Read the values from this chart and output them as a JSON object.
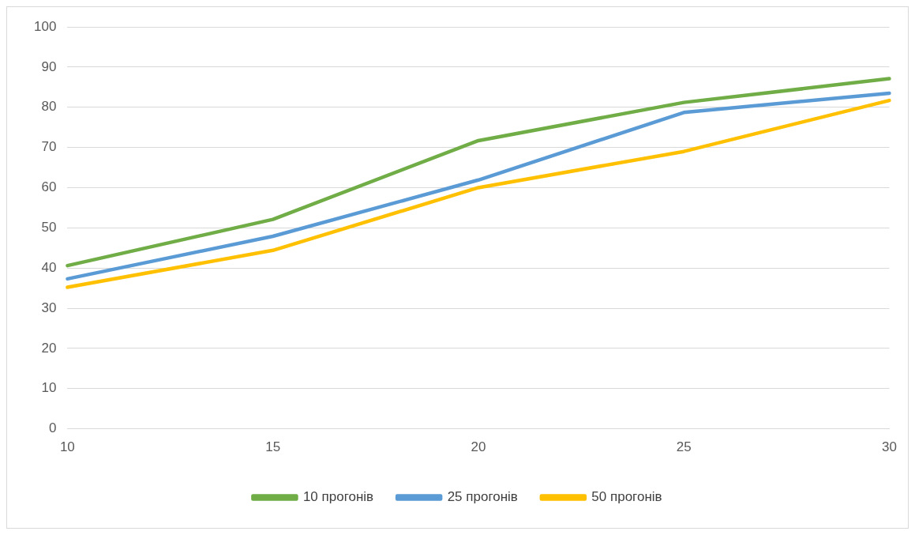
{
  "chart_data": {
    "type": "line",
    "categories": [
      "10",
      "15",
      "20",
      "25",
      "30"
    ],
    "series": [
      {
        "name": "10 прогонів",
        "color": "#70ad47",
        "values": [
          40.6,
          52.1,
          71.7,
          81.2,
          87.1
        ]
      },
      {
        "name": "25 прогонів",
        "color": "#5b9bd5",
        "values": [
          37.3,
          47.9,
          61.9,
          78.7,
          83.5
        ]
      },
      {
        "name": "50 прогонів",
        "color": "#ffc000",
        "values": [
          35.2,
          44.4,
          60,
          69,
          81.7
        ]
      }
    ],
    "ylim": [
      0,
      100
    ],
    "yticks": [
      0,
      10,
      20,
      30,
      40,
      50,
      60,
      70,
      80,
      90,
      100
    ],
    "grid": "y",
    "legend": "bottom",
    "marker": "none",
    "line_style": "solid"
  }
}
